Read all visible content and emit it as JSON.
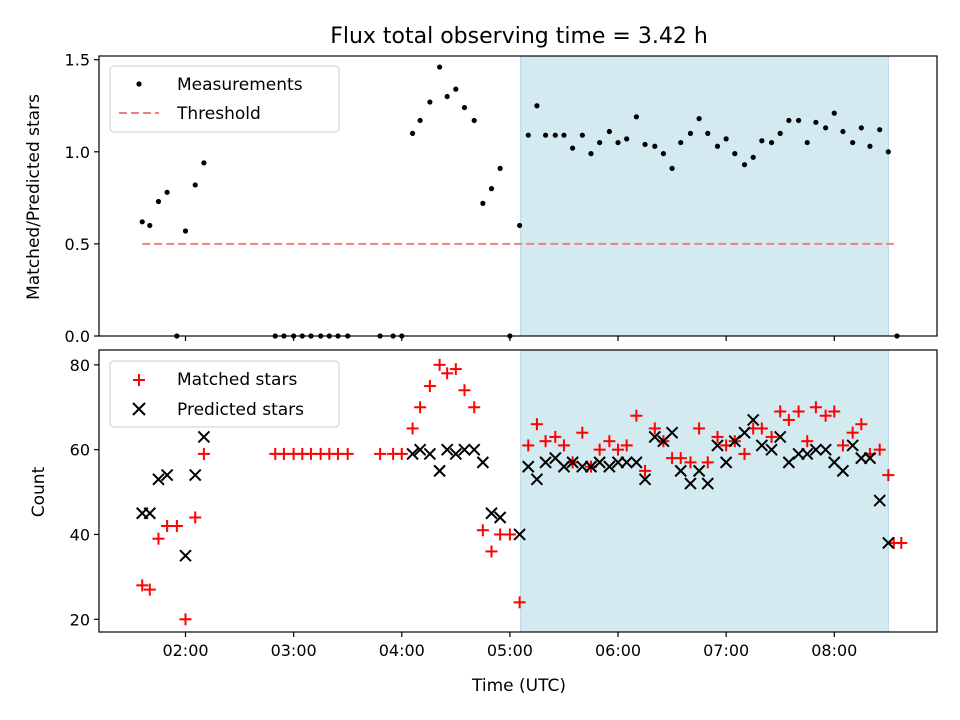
{
  "chart_data": {
    "title": "Flux total observing time = 3.42 h",
    "xlabel": "Time (UTC)",
    "x_unit": "hours UTC",
    "xlim": [
      1.2,
      8.95
    ],
    "xticks": [
      2,
      3,
      4,
      5,
      6,
      7,
      8
    ],
    "xtick_labels": [
      "02:00",
      "03:00",
      "04:00",
      "05:00",
      "06:00",
      "07:00",
      "08:00"
    ],
    "highlight_span": {
      "from": 5.1,
      "to": 8.5,
      "color": "#d3eaf1"
    },
    "panels": [
      {
        "type": "scatter",
        "ylabel": "Matched/Predicted stars",
        "ylim": [
          0,
          1.52
        ],
        "yticks": [
          0.0,
          0.5,
          1.0,
          1.5
        ],
        "ytick_labels": [
          "0.0",
          "0.5",
          "1.0",
          "1.5"
        ],
        "legend_position": "top-left",
        "series": [
          {
            "name": "Measurements",
            "type": "scatter",
            "marker": "dot",
            "color": "#000000",
            "points": [
              [
                1.6,
                0.62
              ],
              [
                1.67,
                0.6
              ],
              [
                1.75,
                0.73
              ],
              [
                1.83,
                0.78
              ],
              [
                1.92,
                0
              ],
              [
                2.0,
                0.57
              ],
              [
                2.09,
                0.82
              ],
              [
                2.17,
                0.94
              ],
              [
                2.83,
                0
              ],
              [
                2.91,
                0
              ],
              [
                3.0,
                0
              ],
              [
                3.08,
                0
              ],
              [
                3.16,
                0
              ],
              [
                3.25,
                0
              ],
              [
                3.33,
                0
              ],
              [
                3.41,
                0
              ],
              [
                3.5,
                0
              ],
              [
                3.8,
                0
              ],
              [
                3.92,
                0
              ],
              [
                4.0,
                0
              ],
              [
                4.1,
                1.1
              ],
              [
                4.17,
                1.17
              ],
              [
                4.26,
                1.27
              ],
              [
                4.35,
                1.46
              ],
              [
                4.42,
                1.3
              ],
              [
                4.5,
                1.34
              ],
              [
                4.58,
                1.24
              ],
              [
                4.67,
                1.17
              ],
              [
                4.75,
                0.72
              ],
              [
                4.83,
                0.8
              ],
              [
                4.91,
                0.91
              ],
              [
                5.0,
                0
              ],
              [
                5.09,
                0.6
              ],
              [
                5.17,
                1.09
              ],
              [
                5.25,
                1.25
              ],
              [
                5.33,
                1.09
              ],
              [
                5.42,
                1.09
              ],
              [
                5.5,
                1.09
              ],
              [
                5.58,
                1.02
              ],
              [
                5.67,
                1.09
              ],
              [
                5.75,
                0.99
              ],
              [
                5.83,
                1.05
              ],
              [
                5.92,
                1.11
              ],
              [
                6.0,
                1.05
              ],
              [
                6.08,
                1.07
              ],
              [
                6.17,
                1.19
              ],
              [
                6.25,
                1.04
              ],
              [
                6.34,
                1.03
              ],
              [
                6.42,
                0.99
              ],
              [
                6.5,
                0.91
              ],
              [
                6.58,
                1.05
              ],
              [
                6.67,
                1.1
              ],
              [
                6.75,
                1.18
              ],
              [
                6.83,
                1.1
              ],
              [
                6.92,
                1.03
              ],
              [
                7.0,
                1.07
              ],
              [
                7.08,
                0.99
              ],
              [
                7.17,
                0.93
              ],
              [
                7.25,
                0.97
              ],
              [
                7.33,
                1.06
              ],
              [
                7.42,
                1.05
              ],
              [
                7.5,
                1.1
              ],
              [
                7.58,
                1.17
              ],
              [
                7.67,
                1.17
              ],
              [
                7.75,
                1.05
              ],
              [
                7.83,
                1.16
              ],
              [
                7.92,
                1.13
              ],
              [
                8.0,
                1.21
              ],
              [
                8.08,
                1.11
              ],
              [
                8.17,
                1.05
              ],
              [
                8.25,
                1.13
              ],
              [
                8.33,
                1.03
              ],
              [
                8.42,
                1.12
              ],
              [
                8.5,
                1.0
              ],
              [
                8.58,
                0
              ]
            ]
          },
          {
            "name": "Threshold",
            "type": "line",
            "style": "dashed",
            "color": "#f08080",
            "points": [
              [
                1.6,
                0.5
              ],
              [
                8.55,
                0.5
              ]
            ]
          }
        ]
      },
      {
        "type": "scatter",
        "ylabel": "Count",
        "ylim": [
          17,
          83.5
        ],
        "yticks": [
          20,
          40,
          60,
          80
        ],
        "ytick_labels": [
          "20",
          "40",
          "60",
          "80"
        ],
        "legend_position": "top-left",
        "series": [
          {
            "name": "Matched stars",
            "type": "scatter",
            "marker": "plus",
            "color": "#ff0000",
            "points": [
              [
                1.6,
                28
              ],
              [
                1.67,
                27
              ],
              [
                1.75,
                39
              ],
              [
                1.83,
                42
              ],
              [
                1.92,
                42
              ],
              [
                2.0,
                20
              ],
              [
                2.09,
                44
              ],
              [
                2.17,
                59
              ],
              [
                2.83,
                59
              ],
              [
                2.91,
                59
              ],
              [
                3.0,
                59
              ],
              [
                3.08,
                59
              ],
              [
                3.16,
                59
              ],
              [
                3.25,
                59
              ],
              [
                3.33,
                59
              ],
              [
                3.41,
                59
              ],
              [
                3.5,
                59
              ],
              [
                3.8,
                59
              ],
              [
                3.92,
                59
              ],
              [
                4.0,
                59
              ],
              [
                4.1,
                65
              ],
              [
                4.17,
                70
              ],
              [
                4.26,
                75
              ],
              [
                4.35,
                80
              ],
              [
                4.42,
                78
              ],
              [
                4.5,
                79
              ],
              [
                4.58,
                74
              ],
              [
                4.67,
                70
              ],
              [
                4.75,
                41
              ],
              [
                4.83,
                36
              ],
              [
                4.91,
                40
              ],
              [
                5.0,
                40
              ],
              [
                5.09,
                24
              ],
              [
                5.17,
                61
              ],
              [
                5.25,
                66
              ],
              [
                5.33,
                62
              ],
              [
                5.42,
                63
              ],
              [
                5.5,
                61
              ],
              [
                5.58,
                57
              ],
              [
                5.67,
                64
              ],
              [
                5.75,
                56
              ],
              [
                5.83,
                60
              ],
              [
                5.92,
                62
              ],
              [
                6.0,
                60
              ],
              [
                6.08,
                61
              ],
              [
                6.17,
                68
              ],
              [
                6.25,
                55
              ],
              [
                6.34,
                65
              ],
              [
                6.42,
                62
              ],
              [
                6.5,
                58
              ],
              [
                6.58,
                58
              ],
              [
                6.67,
                57
              ],
              [
                6.75,
                65
              ],
              [
                6.83,
                57
              ],
              [
                6.92,
                63
              ],
              [
                7.0,
                61
              ],
              [
                7.08,
                62
              ],
              [
                7.17,
                59
              ],
              [
                7.25,
                65
              ],
              [
                7.33,
                65
              ],
              [
                7.42,
                63
              ],
              [
                7.5,
                69
              ],
              [
                7.58,
                67
              ],
              [
                7.67,
                69
              ],
              [
                7.75,
                62
              ],
              [
                7.83,
                70
              ],
              [
                7.92,
                68
              ],
              [
                8.0,
                69
              ],
              [
                8.08,
                61
              ],
              [
                8.17,
                64
              ],
              [
                8.25,
                66
              ],
              [
                8.33,
                59
              ],
              [
                8.42,
                60
              ],
              [
                8.5,
                54
              ],
              [
                8.55,
                38
              ],
              [
                8.62,
                38
              ]
            ]
          },
          {
            "name": "Predicted stars",
            "type": "scatter",
            "marker": "x",
            "color": "#000000",
            "points": [
              [
                1.6,
                45
              ],
              [
                1.67,
                45
              ],
              [
                1.75,
                53
              ],
              [
                1.83,
                54
              ],
              [
                2.0,
                35
              ],
              [
                2.09,
                54
              ],
              [
                2.17,
                63
              ],
              [
                4.1,
                59
              ],
              [
                4.17,
                60
              ],
              [
                4.26,
                59
              ],
              [
                4.35,
                55
              ],
              [
                4.42,
                60
              ],
              [
                4.5,
                59
              ],
              [
                4.58,
                60
              ],
              [
                4.67,
                60
              ],
              [
                4.75,
                57
              ],
              [
                4.83,
                45
              ],
              [
                4.91,
                44
              ],
              [
                5.09,
                40
              ],
              [
                5.17,
                56
              ],
              [
                5.25,
                53
              ],
              [
                5.33,
                57
              ],
              [
                5.42,
                58
              ],
              [
                5.5,
                56
              ],
              [
                5.58,
                57
              ],
              [
                5.67,
                56
              ],
              [
                5.75,
                56
              ],
              [
                5.83,
                57
              ],
              [
                5.92,
                56
              ],
              [
                6.0,
                57
              ],
              [
                6.08,
                57
              ],
              [
                6.17,
                57
              ],
              [
                6.25,
                53
              ],
              [
                6.34,
                63
              ],
              [
                6.42,
                62
              ],
              [
                6.5,
                64
              ],
              [
                6.58,
                55
              ],
              [
                6.67,
                52
              ],
              [
                6.75,
                55
              ],
              [
                6.83,
                52
              ],
              [
                6.92,
                61
              ],
              [
                7.0,
                57
              ],
              [
                7.08,
                62
              ],
              [
                7.17,
                64
              ],
              [
                7.25,
                67
              ],
              [
                7.33,
                61
              ],
              [
                7.42,
                60
              ],
              [
                7.5,
                63
              ],
              [
                7.58,
                57
              ],
              [
                7.67,
                59
              ],
              [
                7.75,
                59
              ],
              [
                7.83,
                60
              ],
              [
                7.92,
                60
              ],
              [
                8.0,
                57
              ],
              [
                8.08,
                55
              ],
              [
                8.17,
                61
              ],
              [
                8.25,
                58
              ],
              [
                8.33,
                58
              ],
              [
                8.42,
                48
              ],
              [
                8.5,
                38
              ]
            ]
          }
        ]
      }
    ]
  }
}
